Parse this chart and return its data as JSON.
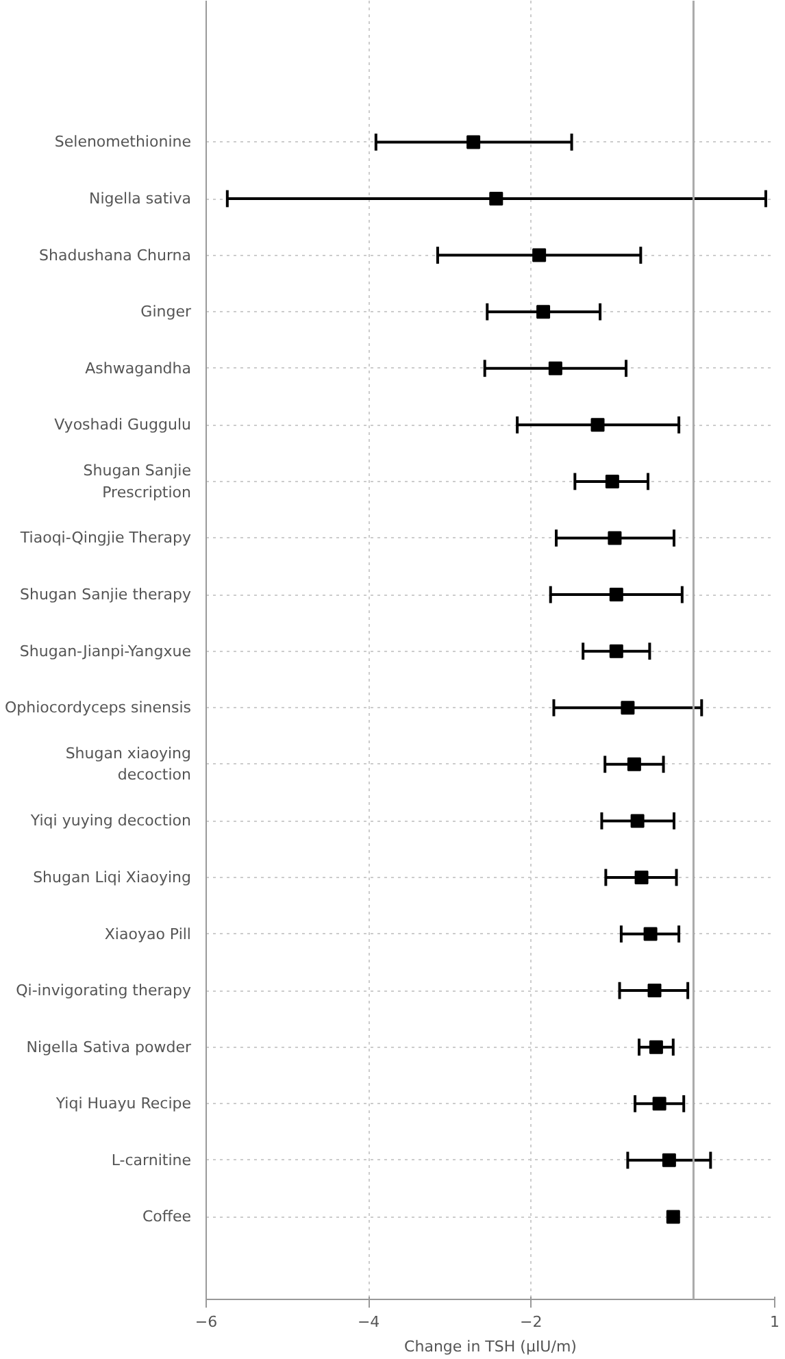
{
  "chart_data": {
    "type": "scatter",
    "orientation": "horizontal",
    "xlabel": "Change in TSH (µIU/m)",
    "categories": [
      "Selenomethionine",
      "Nigella sativa",
      "Shadushana Churna",
      "Ginger",
      "Ashwagandha",
      "Vyoshadi Guggulu",
      "Shugan Sanjie\nPrescription",
      "Tiaoqi-Qingjie Therapy",
      "Shugan Sanjie therapy",
      "Shugan-Jianpi-Yangxue",
      "Ophiocordyceps sinensis",
      "Shugan xiaoying\ndecoction",
      "Yiqi yuying decoction",
      "Shugan Liqi Xiaoying",
      "Xiaoyao Pill",
      "Qi-invigorating therapy",
      "Nigella Sativa powder",
      "Yiqi Huayu Recipe",
      "L-carnitine",
      "Coffee"
    ],
    "values": [
      -2.71,
      -2.43,
      -1.9,
      -1.85,
      -1.7,
      -1.18,
      -1.0,
      -0.97,
      -0.95,
      -0.95,
      -0.81,
      -0.73,
      -0.69,
      -0.64,
      -0.53,
      -0.48,
      -0.46,
      -0.42,
      -0.3,
      -0.25
    ],
    "errors": [
      [
        -3.91,
        -1.5
      ],
      [
        -5.74,
        0.89
      ],
      [
        -3.15,
        -0.65
      ],
      [
        -2.54,
        -1.15
      ],
      [
        -2.57,
        -0.83
      ],
      [
        -2.17,
        -0.18
      ],
      [
        -1.46,
        -0.56
      ],
      [
        -1.69,
        -0.24
      ],
      [
        -1.76,
        -0.14
      ],
      [
        -1.36,
        -0.54
      ],
      [
        -1.72,
        0.1
      ],
      [
        -1.09,
        -0.37
      ],
      [
        -1.13,
        -0.24
      ],
      [
        -1.08,
        -0.21
      ],
      [
        -0.89,
        -0.18
      ],
      [
        -0.91,
        -0.07
      ],
      [
        -0.67,
        -0.25
      ],
      [
        -0.72,
        -0.12
      ],
      [
        -0.81,
        0.21
      ],
      null
    ],
    "color": "#000000",
    "marker": "square",
    "xlim": [
      -6,
      1
    ],
    "xticks": [
      -6,
      -4,
      -2,
      1
    ],
    "grid": true,
    "ref_lines": [
      {
        "axis": "x",
        "value": 0,
        "color": "#aaaaaa"
      }
    ]
  }
}
